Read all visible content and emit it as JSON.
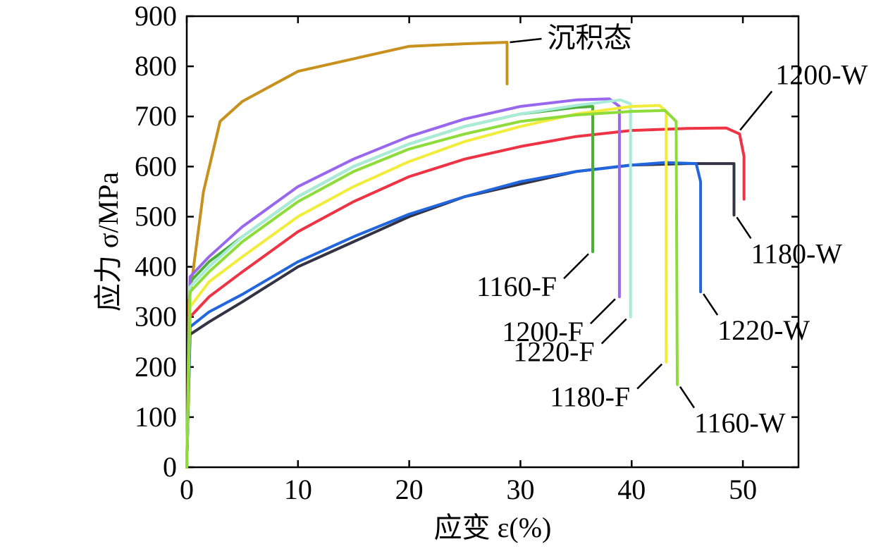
{
  "chart_data": {
    "type": "line",
    "title": "",
    "xlabel": "应变 ε(%)",
    "ylabel": "应力 σ/MPa",
    "xlim": [
      0,
      55
    ],
    "ylim": [
      0,
      900
    ],
    "xticks": [
      0,
      10,
      20,
      30,
      40,
      50
    ],
    "yticks": [
      0,
      100,
      200,
      300,
      400,
      500,
      600,
      700,
      800,
      900
    ],
    "x_tick_labels": [
      "0",
      "10",
      "20",
      "30",
      "40",
      "50"
    ],
    "y_tick_labels": [
      "0",
      "100",
      "200",
      "300",
      "400",
      "500",
      "600",
      "700",
      "800",
      "900"
    ],
    "grid": false,
    "series": [
      {
        "name": "沉积态",
        "color": "#c8901c",
        "points": [
          [
            0,
            0
          ],
          [
            0.2,
            330
          ],
          [
            1.5,
            550
          ],
          [
            3,
            690
          ],
          [
            5,
            730
          ],
          [
            10,
            790
          ],
          [
            15,
            815
          ],
          [
            20,
            840
          ],
          [
            25,
            845
          ],
          [
            28.8,
            848
          ],
          [
            28.8,
            765
          ]
        ]
      },
      {
        "name": "1200-W",
        "color": "#ee3344",
        "points": [
          [
            0,
            0
          ],
          [
            0.3,
            300
          ],
          [
            2,
            340
          ],
          [
            5,
            390
          ],
          [
            10,
            470
          ],
          [
            15,
            530
          ],
          [
            20,
            580
          ],
          [
            25,
            615
          ],
          [
            30,
            640
          ],
          [
            35,
            660
          ],
          [
            40,
            672
          ],
          [
            45,
            676
          ],
          [
            48.5,
            677
          ],
          [
            49.7,
            665
          ],
          [
            50.1,
            620
          ],
          [
            50.1,
            535
          ]
        ]
      },
      {
        "name": "1180-W",
        "color": "#333344",
        "points": [
          [
            0,
            0
          ],
          [
            0.3,
            265
          ],
          [
            2,
            290
          ],
          [
            5,
            330
          ],
          [
            10,
            400
          ],
          [
            15,
            450
          ],
          [
            20,
            500
          ],
          [
            25,
            540
          ],
          [
            30,
            565
          ],
          [
            35,
            590
          ],
          [
            40,
            603
          ],
          [
            45,
            606
          ],
          [
            49.2,
            606
          ],
          [
            49.2,
            503
          ]
        ]
      },
      {
        "name": "1220-W",
        "color": "#2266dd",
        "points": [
          [
            0,
            0
          ],
          [
            0.3,
            280
          ],
          [
            2,
            310
          ],
          [
            5,
            345
          ],
          [
            10,
            410
          ],
          [
            15,
            460
          ],
          [
            20,
            505
          ],
          [
            25,
            540
          ],
          [
            30,
            570
          ],
          [
            35,
            590
          ],
          [
            40,
            603
          ],
          [
            43,
            608
          ],
          [
            45.8,
            606
          ],
          [
            46.2,
            570
          ],
          [
            46.2,
            350
          ]
        ]
      },
      {
        "name": "1160-F",
        "color": "#4caf3a",
        "points": [
          [
            0,
            0
          ],
          [
            0.3,
            370
          ],
          [
            2,
            410
          ],
          [
            5,
            460
          ],
          [
            10,
            540
          ],
          [
            15,
            600
          ],
          [
            20,
            645
          ],
          [
            25,
            680
          ],
          [
            30,
            705
          ],
          [
            35,
            718
          ],
          [
            36.5,
            720
          ],
          [
            36.5,
            430
          ]
        ]
      },
      {
        "name": "1200-F",
        "color": "#9966ee",
        "points": [
          [
            0,
            0
          ],
          [
            0.3,
            380
          ],
          [
            2,
            420
          ],
          [
            5,
            480
          ],
          [
            10,
            560
          ],
          [
            15,
            615
          ],
          [
            20,
            660
          ],
          [
            25,
            695
          ],
          [
            30,
            720
          ],
          [
            35,
            733
          ],
          [
            38,
            735
          ],
          [
            38.9,
            720
          ],
          [
            38.9,
            340
          ]
        ]
      },
      {
        "name": "1220-F",
        "color": "#a8ecd8",
        "points": [
          [
            0,
            0
          ],
          [
            0.3,
            360
          ],
          [
            2,
            400
          ],
          [
            5,
            460
          ],
          [
            10,
            540
          ],
          [
            15,
            600
          ],
          [
            20,
            645
          ],
          [
            25,
            680
          ],
          [
            30,
            705
          ],
          [
            35,
            722
          ],
          [
            39,
            733
          ],
          [
            39.9,
            725
          ],
          [
            39.9,
            300
          ]
        ]
      },
      {
        "name": "1180-F",
        "color": "#f2ec3a",
        "points": [
          [
            0,
            0
          ],
          [
            0.3,
            320
          ],
          [
            2,
            370
          ],
          [
            5,
            420
          ],
          [
            10,
            500
          ],
          [
            15,
            560
          ],
          [
            20,
            610
          ],
          [
            25,
            650
          ],
          [
            30,
            680
          ],
          [
            35,
            705
          ],
          [
            40,
            720
          ],
          [
            42.5,
            722
          ],
          [
            43.1,
            710
          ],
          [
            43.1,
            210
          ]
        ]
      },
      {
        "name": "1160-W",
        "color": "#8edc3a",
        "points": [
          [
            0,
            0
          ],
          [
            0.3,
            350
          ],
          [
            2,
            390
          ],
          [
            5,
            450
          ],
          [
            10,
            530
          ],
          [
            15,
            590
          ],
          [
            20,
            635
          ],
          [
            25,
            665
          ],
          [
            30,
            690
          ],
          [
            35,
            703
          ],
          [
            40,
            710
          ],
          [
            43,
            712
          ],
          [
            44,
            690
          ],
          [
            44.1,
            165
          ]
        ]
      }
    ],
    "annotations": [
      {
        "text": "沉积态",
        "points_to": [
          28.8,
          848
        ],
        "placement": "right"
      },
      {
        "text": "1200-W",
        "points_to": [
          49.5,
          677
        ],
        "placement": "upper-right"
      },
      {
        "text": "1180-W",
        "points_to": [
          49.2,
          503
        ],
        "placement": "lower-right"
      },
      {
        "text": "1220-W",
        "points_to": [
          46.2,
          350
        ],
        "placement": "lower-right"
      },
      {
        "text": "1160-F",
        "points_to": [
          36.5,
          430
        ],
        "placement": "lower-left"
      },
      {
        "text": "1200-F",
        "points_to": [
          38.9,
          340
        ],
        "placement": "lower-left"
      },
      {
        "text": "1220-F",
        "points_to": [
          39.9,
          300
        ],
        "placement": "lower-left"
      },
      {
        "text": "1180-F",
        "points_to": [
          43.1,
          210
        ],
        "placement": "lower-left"
      },
      {
        "text": "1160-W",
        "points_to": [
          44.1,
          165
        ],
        "placement": "lower-right"
      }
    ]
  }
}
